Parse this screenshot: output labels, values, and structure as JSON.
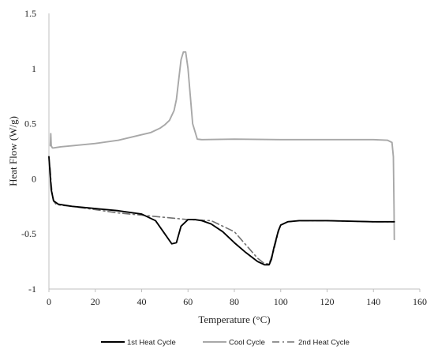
{
  "chart_data": {
    "type": "line",
    "title": "",
    "xlabel": "Temperature (°C)",
    "ylabel": "Heat Flow (W/g)",
    "xlim": [
      0,
      160
    ],
    "ylim": [
      -1,
      1.5
    ],
    "x_ticks": [
      "0",
      "20",
      "40",
      "60",
      "80",
      "100",
      "120",
      "140",
      "160"
    ],
    "y_ticks": [
      "-1",
      "-0.5",
      "0",
      "0.5",
      "1",
      "1.5"
    ],
    "grid": false,
    "legend_position": "bottom",
    "series": [
      {
        "name": "1st Heat Cycle",
        "color": "#000000",
        "style": "solid",
        "x": [
          0,
          1,
          2,
          4,
          10,
          20,
          30,
          40,
          46,
          50,
          53,
          55,
          57,
          60,
          63,
          66,
          70,
          75,
          80,
          85,
          90,
          93,
          95,
          96,
          97,
          99,
          100,
          103,
          108,
          120,
          140,
          149
        ],
        "y": [
          0.2,
          -0.1,
          -0.2,
          -0.23,
          -0.25,
          -0.27,
          -0.29,
          -0.32,
          -0.38,
          -0.5,
          -0.59,
          -0.58,
          -0.43,
          -0.37,
          -0.37,
          -0.38,
          -0.41,
          -0.48,
          -0.58,
          -0.67,
          -0.75,
          -0.78,
          -0.78,
          -0.73,
          -0.63,
          -0.47,
          -0.42,
          -0.39,
          -0.38,
          -0.38,
          -0.39,
          -0.39
        ]
      },
      {
        "name": "Cool Cycle",
        "color": "#a8a8a8",
        "style": "solid",
        "x": [
          149,
          148.9,
          148.6,
          148,
          146,
          140,
          120,
          100,
          80,
          66,
          64,
          62,
          61,
          60,
          59,
          58,
          57,
          56,
          55,
          54,
          52,
          50,
          48,
          46,
          44,
          40,
          30,
          20,
          10,
          5,
          2,
          1.5,
          1,
          0.8,
          0.6
        ],
        "y": [
          -0.55,
          -0.3,
          0.2,
          0.33,
          0.35,
          0.355,
          0.355,
          0.355,
          0.36,
          0.355,
          0.36,
          0.5,
          0.75,
          1.0,
          1.15,
          1.15,
          1.08,
          0.9,
          0.72,
          0.62,
          0.53,
          0.49,
          0.46,
          0.44,
          0.42,
          0.4,
          0.35,
          0.32,
          0.3,
          0.29,
          0.28,
          0.28,
          0.3,
          0.41,
          0.3
        ]
      },
      {
        "name": "2nd Heat Cycle",
        "color": "#707070",
        "style": "dash-dot",
        "x": [
          0.5,
          1,
          1.5,
          2,
          3,
          5,
          10,
          20,
          30,
          40,
          50,
          60,
          70,
          80,
          85,
          90,
          93,
          95,
          97,
          99,
          100,
          103,
          108,
          120,
          140,
          149
        ],
        "y": [
          0.1,
          -0.05,
          -0.15,
          -0.2,
          -0.23,
          -0.24,
          -0.25,
          -0.28,
          -0.31,
          -0.33,
          -0.35,
          -0.37,
          -0.38,
          -0.48,
          -0.6,
          -0.72,
          -0.77,
          -0.77,
          -0.65,
          -0.48,
          -0.42,
          -0.39,
          -0.38,
          -0.38,
          -0.39,
          -0.39
        ]
      }
    ]
  }
}
